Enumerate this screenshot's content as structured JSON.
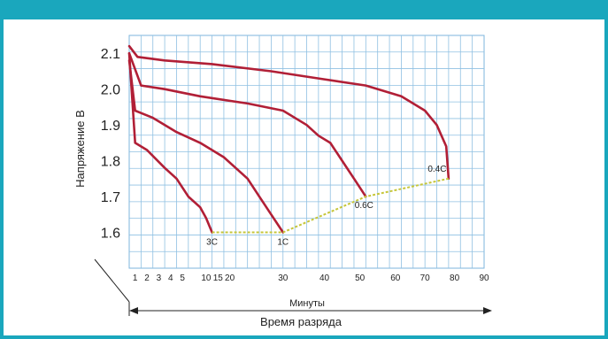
{
  "chart_data": {
    "type": "line",
    "ylabel": "Напряжение В",
    "xlabel": "Минуты",
    "footer_label": "Время разряда",
    "ylim": [
      1.5,
      2.12
    ],
    "y_ticks": [
      "2.1",
      "2.0",
      "1.9",
      "1.8",
      "1.7",
      "1.6"
    ],
    "x_ticks": [
      "1",
      "2",
      "3",
      "4",
      "5",
      "10",
      "15",
      "20",
      "30",
      "40",
      "50",
      "60",
      "70",
      "80",
      "90"
    ],
    "grid": true,
    "series": [
      {
        "name": "3C",
        "color": "#b11f36",
        "points": [
          [
            0,
            2.1
          ],
          [
            0.5,
            1.85
          ],
          [
            1.5,
            1.83
          ],
          [
            3,
            1.78
          ],
          [
            4,
            1.75
          ],
          [
            5,
            1.7
          ],
          [
            6,
            1.67
          ],
          [
            6.5,
            1.64
          ],
          [
            7,
            1.6
          ]
        ]
      },
      {
        "name": "1C",
        "color": "#b11f36",
        "points": [
          [
            0,
            2.08
          ],
          [
            0.5,
            1.94
          ],
          [
            2,
            1.92
          ],
          [
            4,
            1.88
          ],
          [
            6,
            1.85
          ],
          [
            8,
            1.81
          ],
          [
            10,
            1.75
          ],
          [
            11,
            1.7
          ],
          [
            12,
            1.65
          ],
          [
            13,
            1.6
          ]
        ]
      },
      {
        "name": "0.6C",
        "color": "#b11f36",
        "points": [
          [
            0,
            2.1
          ],
          [
            1,
            2.01
          ],
          [
            3,
            2.0
          ],
          [
            6,
            1.98
          ],
          [
            10,
            1.96
          ],
          [
            13,
            1.94
          ],
          [
            15,
            1.9
          ],
          [
            16,
            1.87
          ],
          [
            17,
            1.85
          ],
          [
            18,
            1.8
          ],
          [
            19,
            1.75
          ],
          [
            20,
            1.7
          ]
        ]
      },
      {
        "name": "0.4C",
        "color": "#b11f36",
        "points": [
          [
            0,
            2.12
          ],
          [
            0.7,
            2.09
          ],
          [
            3,
            2.08
          ],
          [
            7,
            2.07
          ],
          [
            12,
            2.05
          ],
          [
            16,
            2.03
          ],
          [
            20,
            2.01
          ],
          [
            23,
            1.98
          ],
          [
            25,
            1.94
          ],
          [
            26,
            1.9
          ],
          [
            26.8,
            1.84
          ],
          [
            27,
            1.75
          ]
        ]
      }
    ],
    "cutoff_line": {
      "color": "#c6c63a",
      "points": [
        [
          7,
          1.6
        ],
        [
          13,
          1.6
        ],
        [
          20,
          1.7
        ],
        [
          27,
          1.75
        ]
      ]
    },
    "endpoint_labels": [
      "3C",
      "1C",
      "0.6C",
      "0.4C"
    ]
  }
}
